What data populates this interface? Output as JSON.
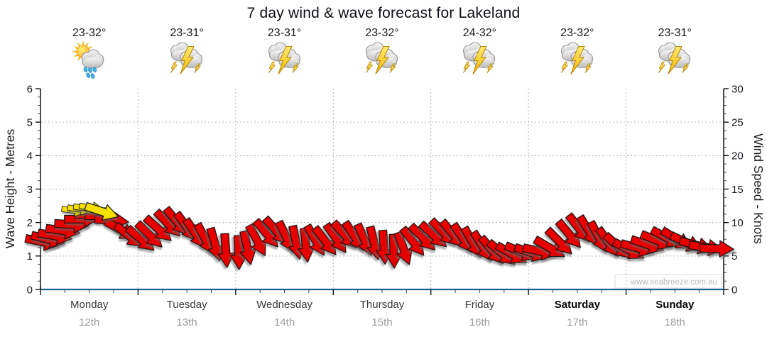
{
  "chart_data": {
    "type": "line",
    "subtype": "wind-wave-arrow-forecast",
    "title": "7 day wind & wave forecast for Lakeland",
    "watermark": "www.seabreeze.com.au",
    "left_axis": {
      "label": "Wave Height - Metres",
      "min": 0,
      "max": 6,
      "ticks": [
        0,
        1,
        2,
        3,
        4,
        5,
        6
      ]
    },
    "right_axis": {
      "label": "Wind Speed - Knots",
      "min": 0,
      "max": 30,
      "ticks": [
        0,
        5,
        10,
        15,
        20,
        25,
        30
      ]
    },
    "grid": {
      "horizontal_at_metres": [
        1,
        2,
        3,
        4,
        5
      ],
      "vertical_at_day_boundaries": true,
      "style": "dotted"
    },
    "days": [
      {
        "name": "Monday",
        "date": "12th",
        "temp": "23-32°",
        "icon": "sun-cloud-rain",
        "weekend": false
      },
      {
        "name": "Tuesday",
        "date": "13th",
        "temp": "23-31°",
        "icon": "storm",
        "weekend": false
      },
      {
        "name": "Wednesday",
        "date": "14th",
        "temp": "23-31°",
        "icon": "storm",
        "weekend": false
      },
      {
        "name": "Thursday",
        "date": "15th",
        "temp": "23-32°",
        "icon": "storm",
        "weekend": false
      },
      {
        "name": "Friday",
        "date": "16th",
        "temp": "24-32°",
        "icon": "storm",
        "weekend": false
      },
      {
        "name": "Saturday",
        "date": "17th",
        "temp": "23-32°",
        "icon": "storm",
        "weekend": true
      },
      {
        "name": "Sunday",
        "date": "18th",
        "temp": "23-31°",
        "icon": "storm",
        "weekend": true
      }
    ],
    "arrow_legend": "each arrow = forecast wind: position = wave height (m) / wind speed (kn), rotation = wind direction",
    "red_arrows": [
      [
        0,
        0.02,
        1.42,
        12
      ],
      [
        0,
        0.08,
        1.5,
        14
      ],
      [
        0,
        0.15,
        1.6,
        10
      ],
      [
        0,
        0.23,
        1.76,
        8
      ],
      [
        0,
        0.32,
        1.94,
        4
      ],
      [
        0,
        0.42,
        2.1,
        0
      ],
      [
        0,
        0.53,
        2.24,
        0
      ],
      [
        0,
        0.63,
        2.2,
        0
      ],
      [
        0,
        0.73,
        2.06,
        5
      ],
      [
        0,
        0.82,
        1.78,
        30
      ],
      [
        0,
        0.91,
        1.6,
        38
      ],
      [
        1,
        0.03,
        1.5,
        40
      ],
      [
        1,
        0.12,
        1.62,
        44
      ],
      [
        1,
        0.21,
        1.8,
        42
      ],
      [
        1,
        0.31,
        1.96,
        46
      ],
      [
        1,
        0.4,
        2.02,
        50
      ],
      [
        1,
        0.5,
        1.86,
        54
      ],
      [
        1,
        0.59,
        1.66,
        56
      ],
      [
        1,
        0.69,
        1.5,
        62
      ],
      [
        1,
        0.79,
        1.34,
        74
      ],
      [
        1,
        0.9,
        1.16,
        86
      ],
      [
        2,
        0.03,
        1.1,
        88
      ],
      [
        2,
        0.12,
        1.24,
        78
      ],
      [
        2,
        0.22,
        1.46,
        62
      ],
      [
        2,
        0.32,
        1.66,
        50
      ],
      [
        2,
        0.42,
        1.74,
        48
      ],
      [
        2,
        0.52,
        1.56,
        64
      ],
      [
        2,
        0.62,
        1.4,
        78
      ],
      [
        2,
        0.72,
        1.32,
        84
      ],
      [
        2,
        0.82,
        1.46,
        60
      ],
      [
        2,
        0.92,
        1.44,
        52
      ],
      [
        3,
        0.03,
        1.52,
        55
      ],
      [
        3,
        0.12,
        1.62,
        48
      ],
      [
        3,
        0.22,
        1.58,
        56
      ],
      [
        3,
        0.32,
        1.48,
        66
      ],
      [
        3,
        0.42,
        1.38,
        76
      ],
      [
        3,
        0.52,
        1.26,
        86
      ],
      [
        3,
        0.62,
        1.14,
        88
      ],
      [
        3,
        0.72,
        1.22,
        70
      ],
      [
        3,
        0.82,
        1.42,
        52
      ],
      [
        3,
        0.92,
        1.54,
        45
      ],
      [
        4,
        0.03,
        1.62,
        42
      ],
      [
        4,
        0.13,
        1.7,
        45
      ],
      [
        4,
        0.23,
        1.64,
        50
      ],
      [
        4,
        0.33,
        1.52,
        56
      ],
      [
        4,
        0.43,
        1.4,
        60
      ],
      [
        4,
        0.53,
        1.28,
        58
      ],
      [
        4,
        0.63,
        1.16,
        50
      ],
      [
        4,
        0.73,
        1.08,
        40
      ],
      [
        4,
        0.83,
        1.06,
        30
      ],
      [
        4,
        0.93,
        1.12,
        22
      ],
      [
        5,
        0.03,
        1.1,
        18
      ],
      [
        5,
        0.12,
        1.14,
        12
      ],
      [
        5,
        0.22,
        1.24,
        30
      ],
      [
        5,
        0.32,
        1.42,
        45
      ],
      [
        5,
        0.42,
        1.64,
        50
      ],
      [
        5,
        0.52,
        1.82,
        52
      ],
      [
        5,
        0.62,
        1.74,
        58
      ],
      [
        5,
        0.72,
        1.56,
        62
      ],
      [
        5,
        0.82,
        1.4,
        55
      ],
      [
        5,
        0.92,
        1.28,
        42
      ],
      [
        6,
        0.03,
        1.18,
        28
      ],
      [
        6,
        0.12,
        1.24,
        15
      ],
      [
        6,
        0.22,
        1.34,
        18
      ],
      [
        6,
        0.32,
        1.46,
        22
      ],
      [
        6,
        0.42,
        1.54,
        28
      ],
      [
        6,
        0.52,
        1.5,
        32
      ],
      [
        6,
        0.62,
        1.4,
        25
      ],
      [
        6,
        0.72,
        1.32,
        15
      ],
      [
        6,
        0.82,
        1.26,
        8
      ],
      [
        6,
        0.93,
        1.22,
        2
      ]
    ],
    "yellow_arrows": [
      [
        0,
        0.34,
        2.36,
        8,
        0.7
      ],
      [
        0,
        0.4,
        2.4,
        8,
        0.7
      ],
      [
        0,
        0.46,
        2.43,
        8,
        0.7
      ],
      [
        0,
        0.52,
        2.45,
        8,
        0.7
      ],
      [
        0,
        0.63,
        2.33,
        18,
        1.0
      ]
    ],
    "colors": {
      "title": "#0d0d16",
      "axis_bottom_blue": "#17618f",
      "axis_black": "#000000",
      "grid": "#b3b3b3",
      "arrow_red": "#e60000",
      "arrow_yellow": "#f5e000",
      "day_label": "#383838",
      "weekend_label": "#050505",
      "date_label": "#9c9c9c",
      "tick_label": "#14141e",
      "watermark": "#b8b8b8"
    }
  }
}
